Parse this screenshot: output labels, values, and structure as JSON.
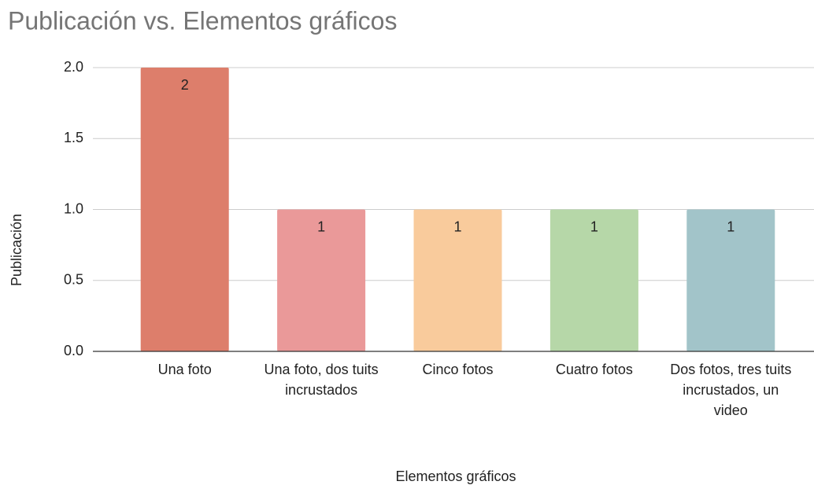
{
  "chart_data": {
    "type": "bar",
    "title": "Publicación vs. Elementos gráficos",
    "x_label": "Elementos gráficos",
    "y_label": "Publicación",
    "categories": [
      "Una foto",
      "Una foto, dos tuits incrustados",
      "Cinco fotos",
      "Cuatro fotos",
      "Dos fotos, tres tuits incrustados, un video"
    ],
    "values": [
      2,
      1,
      1,
      1,
      1
    ],
    "colors": [
      "#dd7e6b",
      "#ea9999",
      "#f9cb9c",
      "#b6d7a8",
      "#a2c4c9"
    ],
    "ylim": [
      0,
      2
    ],
    "yticks": [
      {
        "value": 0,
        "label": "0.0"
      },
      {
        "value": 0.5,
        "label": "0.5"
      },
      {
        "value": 1,
        "label": "1.0"
      },
      {
        "value": 1.5,
        "label": "1.5"
      },
      {
        "value": 2,
        "label": "2.0"
      }
    ],
    "grid": true
  }
}
